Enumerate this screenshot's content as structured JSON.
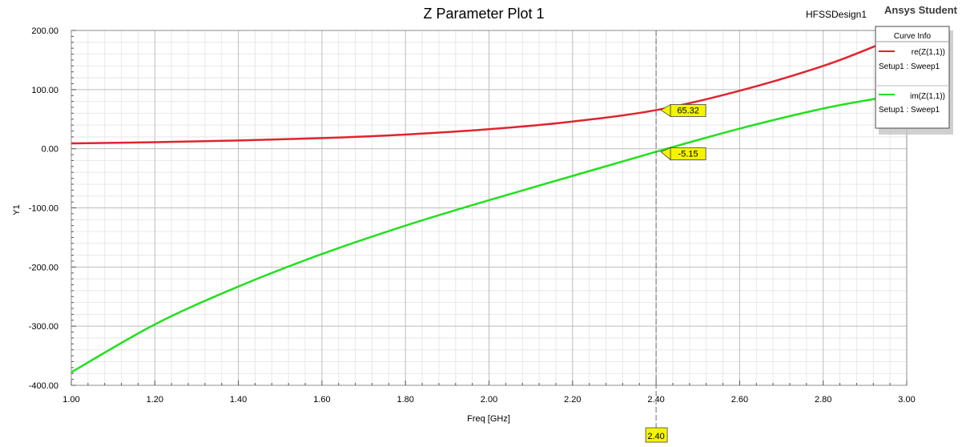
{
  "header": {
    "design_name": "HFSSDesign1",
    "brand": "Ansys Student"
  },
  "chart_data": {
    "type": "line",
    "title": "Z Parameter Plot 1",
    "xlabel": "Freq [GHz]",
    "ylabel": "Y1",
    "xlim": [
      1.0,
      3.0
    ],
    "ylim": [
      -400,
      200
    ],
    "x_ticks": [
      "1.00",
      "1.20",
      "1.40",
      "1.60",
      "1.80",
      "2.00",
      "2.20",
      "2.40",
      "2.60",
      "2.80",
      "3.00"
    ],
    "y_ticks": [
      "200.00",
      "100.00",
      "0.00",
      "-100.00",
      "-200.00",
      "-300.00",
      "-400.00"
    ],
    "grid": true,
    "legend_title": "Curve Info",
    "legend_position": "top-right",
    "series": [
      {
        "name": "re(Z(1,1))",
        "sub": "Setup1 : Sweep1",
        "color": "#e0242e",
        "x": [
          1.0,
          1.2,
          1.4,
          1.6,
          1.8,
          2.0,
          2.2,
          2.4,
          2.6,
          2.8,
          2.93
        ],
        "values": [
          9,
          11,
          14,
          18,
          24,
          33,
          46,
          65.32,
          98,
          140,
          175
        ]
      },
      {
        "name": "im(Z(1,1))",
        "sub": "Setup1 : Sweep1",
        "color": "#22e01e",
        "x": [
          1.0,
          1.2,
          1.4,
          1.6,
          1.8,
          2.0,
          2.2,
          2.4,
          2.6,
          2.8,
          2.93
        ],
        "values": [
          -378,
          -297,
          -233,
          -178,
          -130,
          -87,
          -46,
          -5.15,
          34,
          68,
          85
        ]
      }
    ],
    "marker": {
      "x": 2.4,
      "x_label": "2.40",
      "labels": [
        "65.32",
        "-5.15"
      ]
    }
  }
}
